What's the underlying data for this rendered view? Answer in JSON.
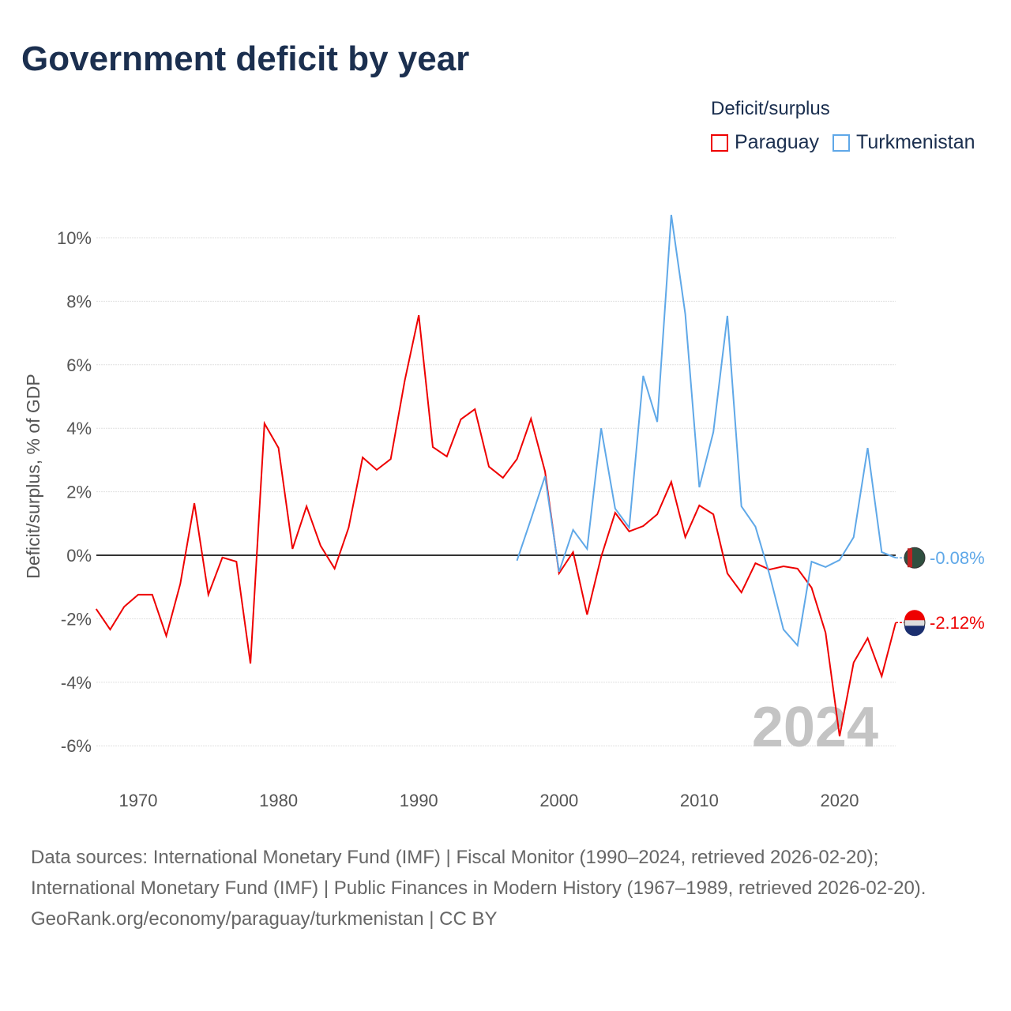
{
  "title": "Government deficit by year",
  "legend": {
    "title": "Deficit/surplus",
    "items": [
      "Paraguay",
      "Turkmenistan"
    ]
  },
  "chart_data": {
    "type": "line",
    "title": "Government deficit by year",
    "xlabel": "",
    "ylabel": "Deficit/surplus, % of GDP",
    "xlim": [
      1967,
      2024
    ],
    "ylim": [
      -7,
      11
    ],
    "x_ticks": [
      1970,
      1980,
      1990,
      2000,
      2010,
      2020
    ],
    "y_ticks": [
      -6,
      -4,
      -2,
      0,
      2,
      4,
      6,
      8,
      10
    ],
    "y_tick_labels": [
      "-6%",
      "-4%",
      "-2%",
      "0%",
      "2%",
      "4%",
      "6%",
      "8%",
      "10%"
    ],
    "x_tick_labels": [
      "1970",
      "1980",
      "1990",
      "2000",
      "2010",
      "2020"
    ],
    "year_label": "2024",
    "series": [
      {
        "name": "Paraguay",
        "color": "#ee0000",
        "end_label": "-2.12%",
        "start": 1967,
        "values": [
          -1.69,
          -2.34,
          -1.62,
          -1.24,
          -1.24,
          -2.54,
          -0.9,
          1.64,
          -1.24,
          -0.07,
          -0.2,
          -3.41,
          4.15,
          3.38,
          0.2,
          1.54,
          0.3,
          -0.42,
          0.87,
          3.08,
          2.69,
          3.03,
          5.5,
          7.56,
          3.41,
          3.11,
          4.28,
          4.6,
          2.79,
          2.44,
          3.03,
          4.3,
          2.64,
          -0.57,
          0.1,
          -1.87,
          -0.05,
          1.34,
          0.75,
          0.92,
          1.29,
          2.31,
          0.57,
          1.57,
          1.29,
          -0.57,
          -1.17,
          -0.25,
          -0.45,
          -0.35,
          -0.42,
          -1.02,
          -2.44,
          -5.7,
          -3.38,
          -2.61,
          -3.81,
          -2.12
        ]
      },
      {
        "name": "Turkmenistan",
        "color": "#5fa8e8",
        "end_label": "-0.08%",
        "start": 1997,
        "values": [
          -0.17,
          1.14,
          2.49,
          -0.52,
          0.8,
          0.2,
          4.0,
          1.47,
          0.87,
          5.65,
          4.2,
          10.72,
          7.59,
          2.14,
          3.88,
          7.54,
          1.54,
          0.9,
          -0.6,
          -2.34,
          -2.84,
          -0.2,
          -0.37,
          -0.15,
          0.57,
          3.38,
          0.1,
          -0.08
        ]
      }
    ]
  },
  "sources": {
    "line1": "Data sources: International Monetary Fund (IMF) | Fiscal Monitor (1990–2024, retrieved 2026-02-20);",
    "line2": "International Monetary Fund (IMF) | Public Finances in Modern History (1967–1989, retrieved 2026-02-20).",
    "line3": "GeoRank.org/economy/paraguay/turkmenistan | CC BY"
  }
}
